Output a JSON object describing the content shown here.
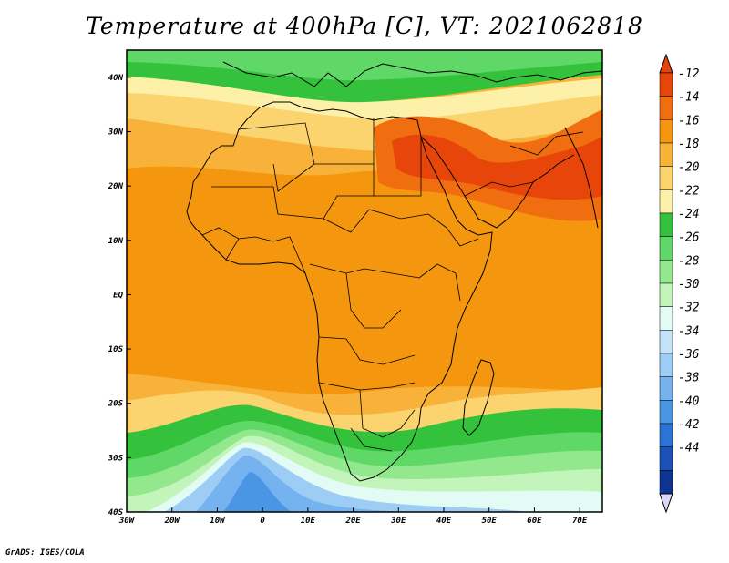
{
  "title": "Temperature at 400hPa [C], VT: 2021062818",
  "credit": "GrADS: IGES/COLA",
  "map": {
    "lon_range": [
      -30,
      75
    ],
    "lat_range": [
      -40,
      45
    ],
    "lon_ticks": [
      {
        "value": -30,
        "label": "30W"
      },
      {
        "value": -20,
        "label": "20W"
      },
      {
        "value": -10,
        "label": "10W"
      },
      {
        "value": 0,
        "label": "0"
      },
      {
        "value": 10,
        "label": "10E"
      },
      {
        "value": 20,
        "label": "20E"
      },
      {
        "value": 30,
        "label": "30E"
      },
      {
        "value": 40,
        "label": "40E"
      },
      {
        "value": 50,
        "label": "50E"
      },
      {
        "value": 60,
        "label": "60E"
      },
      {
        "value": 70,
        "label": "70E"
      }
    ],
    "lat_ticks": [
      {
        "value": 40,
        "label": "40N"
      },
      {
        "value": 30,
        "label": "30N"
      },
      {
        "value": 20,
        "label": "20N"
      },
      {
        "value": 10,
        "label": "10N"
      },
      {
        "value": 0,
        "label": "EQ"
      },
      {
        "value": -10,
        "label": "10S"
      },
      {
        "value": -20,
        "label": "20S"
      },
      {
        "value": -30,
        "label": "30S"
      },
      {
        "value": -40,
        "label": "40S"
      }
    ]
  },
  "colorbar": {
    "labels": [
      "-12",
      "-14",
      "-16",
      "-18",
      "-20",
      "-22",
      "-24",
      "-26",
      "-28",
      "-30",
      "-32",
      "-34",
      "-36",
      "-38",
      "-40",
      "-42",
      "-44"
    ],
    "colors": [
      "#e8450a",
      "#f06e10",
      "#f5960f",
      "#f8b23a",
      "#fbd36f",
      "#fdf0a8",
      "#34c23c",
      "#5fd868",
      "#93e88e",
      "#c3f5bb",
      "#e3fbf5",
      "#c4e3f8",
      "#9dcdf5",
      "#74b3ef",
      "#4a95e4",
      "#2b74d6",
      "#1a52b8",
      "#0e3391"
    ],
    "over_color": "#e8450a",
    "under_color": "#dcd8f8"
  }
}
